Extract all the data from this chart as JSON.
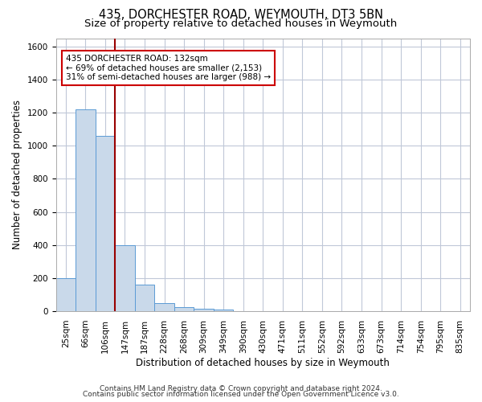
{
  "title1": "435, DORCHESTER ROAD, WEYMOUTH, DT3 5BN",
  "title2": "Size of property relative to detached houses in Weymouth",
  "xlabel": "Distribution of detached houses by size in Weymouth",
  "ylabel": "Number of detached properties",
  "bar_labels": [
    "25sqm",
    "66sqm",
    "106sqm",
    "147sqm",
    "187sqm",
    "228sqm",
    "268sqm",
    "309sqm",
    "349sqm",
    "390sqm",
    "430sqm",
    "471sqm",
    "511sqm",
    "552sqm",
    "592sqm",
    "633sqm",
    "673sqm",
    "714sqm",
    "754sqm",
    "795sqm",
    "835sqm"
  ],
  "bar_values": [
    200,
    1220,
    1060,
    400,
    160,
    50,
    25,
    15,
    10,
    0,
    0,
    0,
    0,
    0,
    0,
    0,
    0,
    0,
    0,
    0,
    0
  ],
  "bar_color": "#c9d9ea",
  "bar_edge_color": "#5b9bd5",
  "vline_x": 2.5,
  "annotation_line1": "435 DORCHESTER ROAD: 132sqm",
  "annotation_line2": "← 69% of detached houses are smaller (2,153)",
  "annotation_line3": "31% of semi-detached houses are larger (988) →",
  "annotation_box_color": "#ffffff",
  "annotation_box_edge": "#cc0000",
  "vline_color": "#990000",
  "ylim": [
    0,
    1650
  ],
  "yticks": [
    0,
    200,
    400,
    600,
    800,
    1000,
    1200,
    1400,
    1600
  ],
  "footer1": "Contains HM Land Registry data © Crown copyright and database right 2024.",
  "footer2": "Contains public sector information licensed under the Open Government Licence v3.0.",
  "bg_color": "#ffffff",
  "grid_color": "#c0c8d8",
  "title1_fontsize": 10.5,
  "title2_fontsize": 9.5,
  "xlabel_fontsize": 8.5,
  "ylabel_fontsize": 8.5,
  "tick_fontsize": 7.5,
  "annot_fontsize": 7.5,
  "footer_fontsize": 6.5
}
